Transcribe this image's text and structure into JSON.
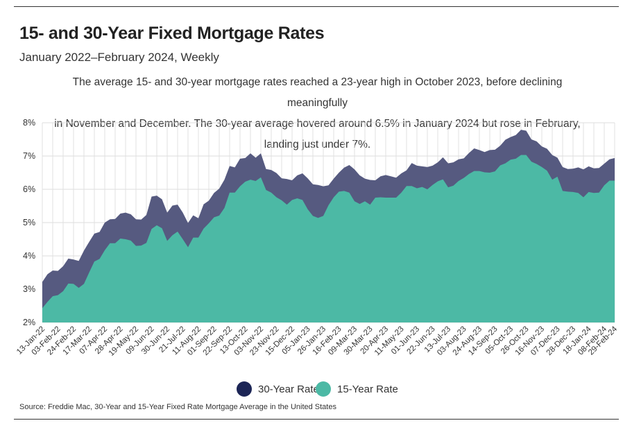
{
  "header": {
    "title": "15- and 30-Year Fixed Mortgage Rates",
    "subtitle": "January 2022–February 2024, Weekly",
    "description_lines": [
      "The average 15- and 30-year mortgage rates reached a 23-year high in October 2023, before declining meaningfully",
      "in November and December. The 30-year average hovered around 6.5% in January 2024 but rose in February,",
      "landing just under 7%."
    ]
  },
  "legend": {
    "items": [
      {
        "label": "30-Year Rate",
        "color": "#1c2556"
      },
      {
        "label": "15-Year Rate",
        "color": "#4cb9a5"
      }
    ]
  },
  "source": "Source:  Freddie Mac, 30-Year  and 15-Year Fixed Rate Mortgage Average in the United States",
  "chart_data": {
    "type": "area",
    "ylim": [
      2,
      8
    ],
    "y_ticks": [
      "2%",
      "3%",
      "4%",
      "5%",
      "6%",
      "7%",
      "8%"
    ],
    "x_tick_labels": [
      "13-Jan-22",
      "03-Feb-22",
      "24-Feb-22",
      "17-Mar-22",
      "07-Apr-22",
      "28-Apr-22",
      "19-May-22",
      "09-Jun-22",
      "30-Jun-22",
      "21-Jul-22",
      "11-Aug-22",
      "01-Sep-22",
      "22-Sep-22",
      "13-Oct-22",
      "03-Nov-22",
      "23-Nov-22",
      "15-Dec-22",
      "05-Jan-23",
      "26-Jan-23",
      "16-Feb-23",
      "09-Mar-23",
      "30-Mar-23",
      "20-Apr-23",
      "11-May-23",
      "01-Jun-23",
      "22-Jun-23",
      "13-Jul-23",
      "03-Aug-23",
      "24-Aug-23",
      "14-Sep-23",
      "05-Oct-23",
      "26-Oct-23",
      "16-Nov-23",
      "07-Dec-23",
      "28-Dec-23",
      "18-Jan-24",
      "08-Feb-24",
      "29-Feb-24"
    ],
    "grid": true,
    "legend_position": "bottom",
    "series": [
      {
        "name": "30-Year Rate",
        "color": "#565a80",
        "values": [
          3.22,
          3.45,
          3.56,
          3.55,
          3.69,
          3.92,
          3.89,
          3.85,
          4.16,
          4.42,
          4.67,
          4.72,
          5.0,
          5.1,
          5.11,
          5.27,
          5.3,
          5.25,
          5.1,
          5.09,
          5.23,
          5.78,
          5.81,
          5.7,
          5.3,
          5.51,
          5.54,
          5.3,
          4.99,
          5.22,
          5.13,
          5.55,
          5.66,
          5.89,
          6.02,
          6.29,
          6.7,
          6.66,
          6.92,
          6.94,
          7.08,
          6.95,
          7.08,
          6.61,
          6.58,
          6.49,
          6.33,
          6.31,
          6.27,
          6.42,
          6.48,
          6.33,
          6.15,
          6.13,
          6.09,
          6.12,
          6.32,
          6.5,
          6.65,
          6.73,
          6.6,
          6.42,
          6.32,
          6.28,
          6.27,
          6.39,
          6.43,
          6.39,
          6.35,
          6.48,
          6.57,
          6.79,
          6.71,
          6.69,
          6.67,
          6.71,
          6.81,
          6.96,
          6.78,
          6.81,
          6.9,
          6.93,
          7.09,
          7.23,
          7.18,
          7.12,
          7.18,
          7.19,
          7.31,
          7.49,
          7.57,
          7.63,
          7.79,
          7.76,
          7.5,
          7.44,
          7.29,
          7.22,
          7.03,
          6.95,
          6.67,
          6.61,
          6.62,
          6.66,
          6.6,
          6.69,
          6.63,
          6.64,
          6.77,
          6.9,
          6.94
        ]
      },
      {
        "name": "15-Year Rate",
        "color": "#4cb9a5",
        "values": [
          2.43,
          2.62,
          2.79,
          2.82,
          2.94,
          3.17,
          3.16,
          3.04,
          3.16,
          3.5,
          3.83,
          3.91,
          4.17,
          4.38,
          4.38,
          4.52,
          4.5,
          4.46,
          4.3,
          4.31,
          4.39,
          4.81,
          4.92,
          4.83,
          4.45,
          4.62,
          4.73,
          4.5,
          4.26,
          4.55,
          4.55,
          4.82,
          4.98,
          5.16,
          5.21,
          5.44,
          5.9,
          5.9,
          6.09,
          6.23,
          6.29,
          6.25,
          6.36,
          5.98,
          5.9,
          5.76,
          5.67,
          5.54,
          5.68,
          5.73,
          5.68,
          5.4,
          5.2,
          5.14,
          5.2,
          5.52,
          5.76,
          5.93,
          5.95,
          5.9,
          5.64,
          5.56,
          5.64,
          5.54,
          5.75,
          5.76,
          5.75,
          5.75,
          5.75,
          5.9,
          6.1,
          6.1,
          6.03,
          6.07,
          6.0,
          6.13,
          6.24,
          6.3,
          6.06,
          6.11,
          6.25,
          6.34,
          6.46,
          6.55,
          6.55,
          6.51,
          6.5,
          6.54,
          6.72,
          6.78,
          6.89,
          6.92,
          7.03,
          7.03,
          6.83,
          6.76,
          6.67,
          6.56,
          6.29,
          6.38,
          5.95,
          5.93,
          5.92,
          5.89,
          5.76,
          5.92,
          5.89,
          5.9,
          6.12,
          6.26,
          6.26
        ]
      }
    ]
  }
}
